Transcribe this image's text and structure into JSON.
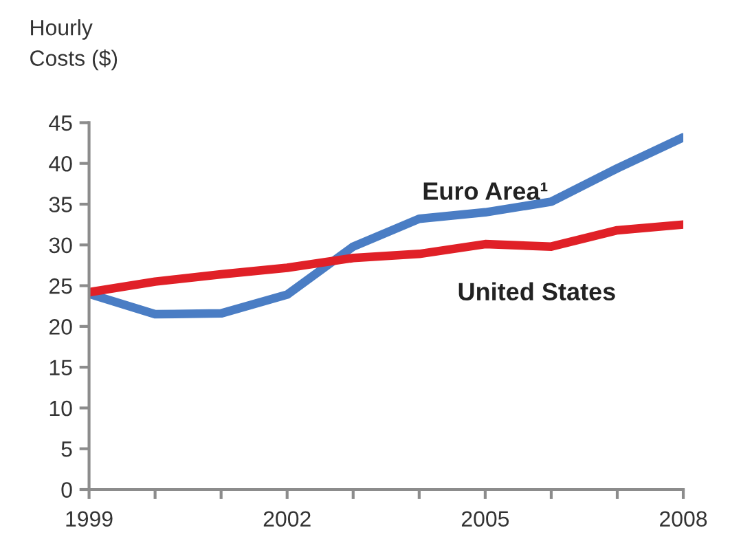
{
  "chart_data": {
    "type": "line",
    "ylabel": "Hourly\nCosts ($)",
    "x": [
      1999,
      2000,
      2001,
      2002,
      2003,
      2004,
      2005,
      2006,
      2007,
      2008
    ],
    "series": [
      {
        "name": "Euro Area¹",
        "color": "#4a7dc4",
        "values": [
          24,
          21.5,
          21.6,
          23.9,
          29.8,
          33.2,
          34.0,
          35.3,
          39.4,
          43.2
        ]
      },
      {
        "name": "United States",
        "color": "#e02027",
        "values": [
          24.2,
          25.5,
          26.4,
          27.2,
          28.4,
          28.9,
          30.1,
          29.8,
          31.8,
          32.5
        ]
      }
    ],
    "xlim": [
      1999,
      2008
    ],
    "xticks": [
      1999,
      {
        "value": 2000,
        "label": null
      },
      {
        "value": 2001,
        "label": null
      },
      2002,
      {
        "value": 2003,
        "label": null
      },
      {
        "value": 2004,
        "label": null
      },
      2005,
      {
        "value": 2006,
        "label": null
      },
      {
        "value": 2007,
        "label": null
      },
      2008
    ],
    "ylim": [
      0,
      45
    ],
    "yticks": [
      0,
      5,
      10,
      15,
      20,
      25,
      30,
      35,
      40,
      45
    ],
    "grid": false,
    "legend": false,
    "marker": "none",
    "line_style": "solid"
  }
}
